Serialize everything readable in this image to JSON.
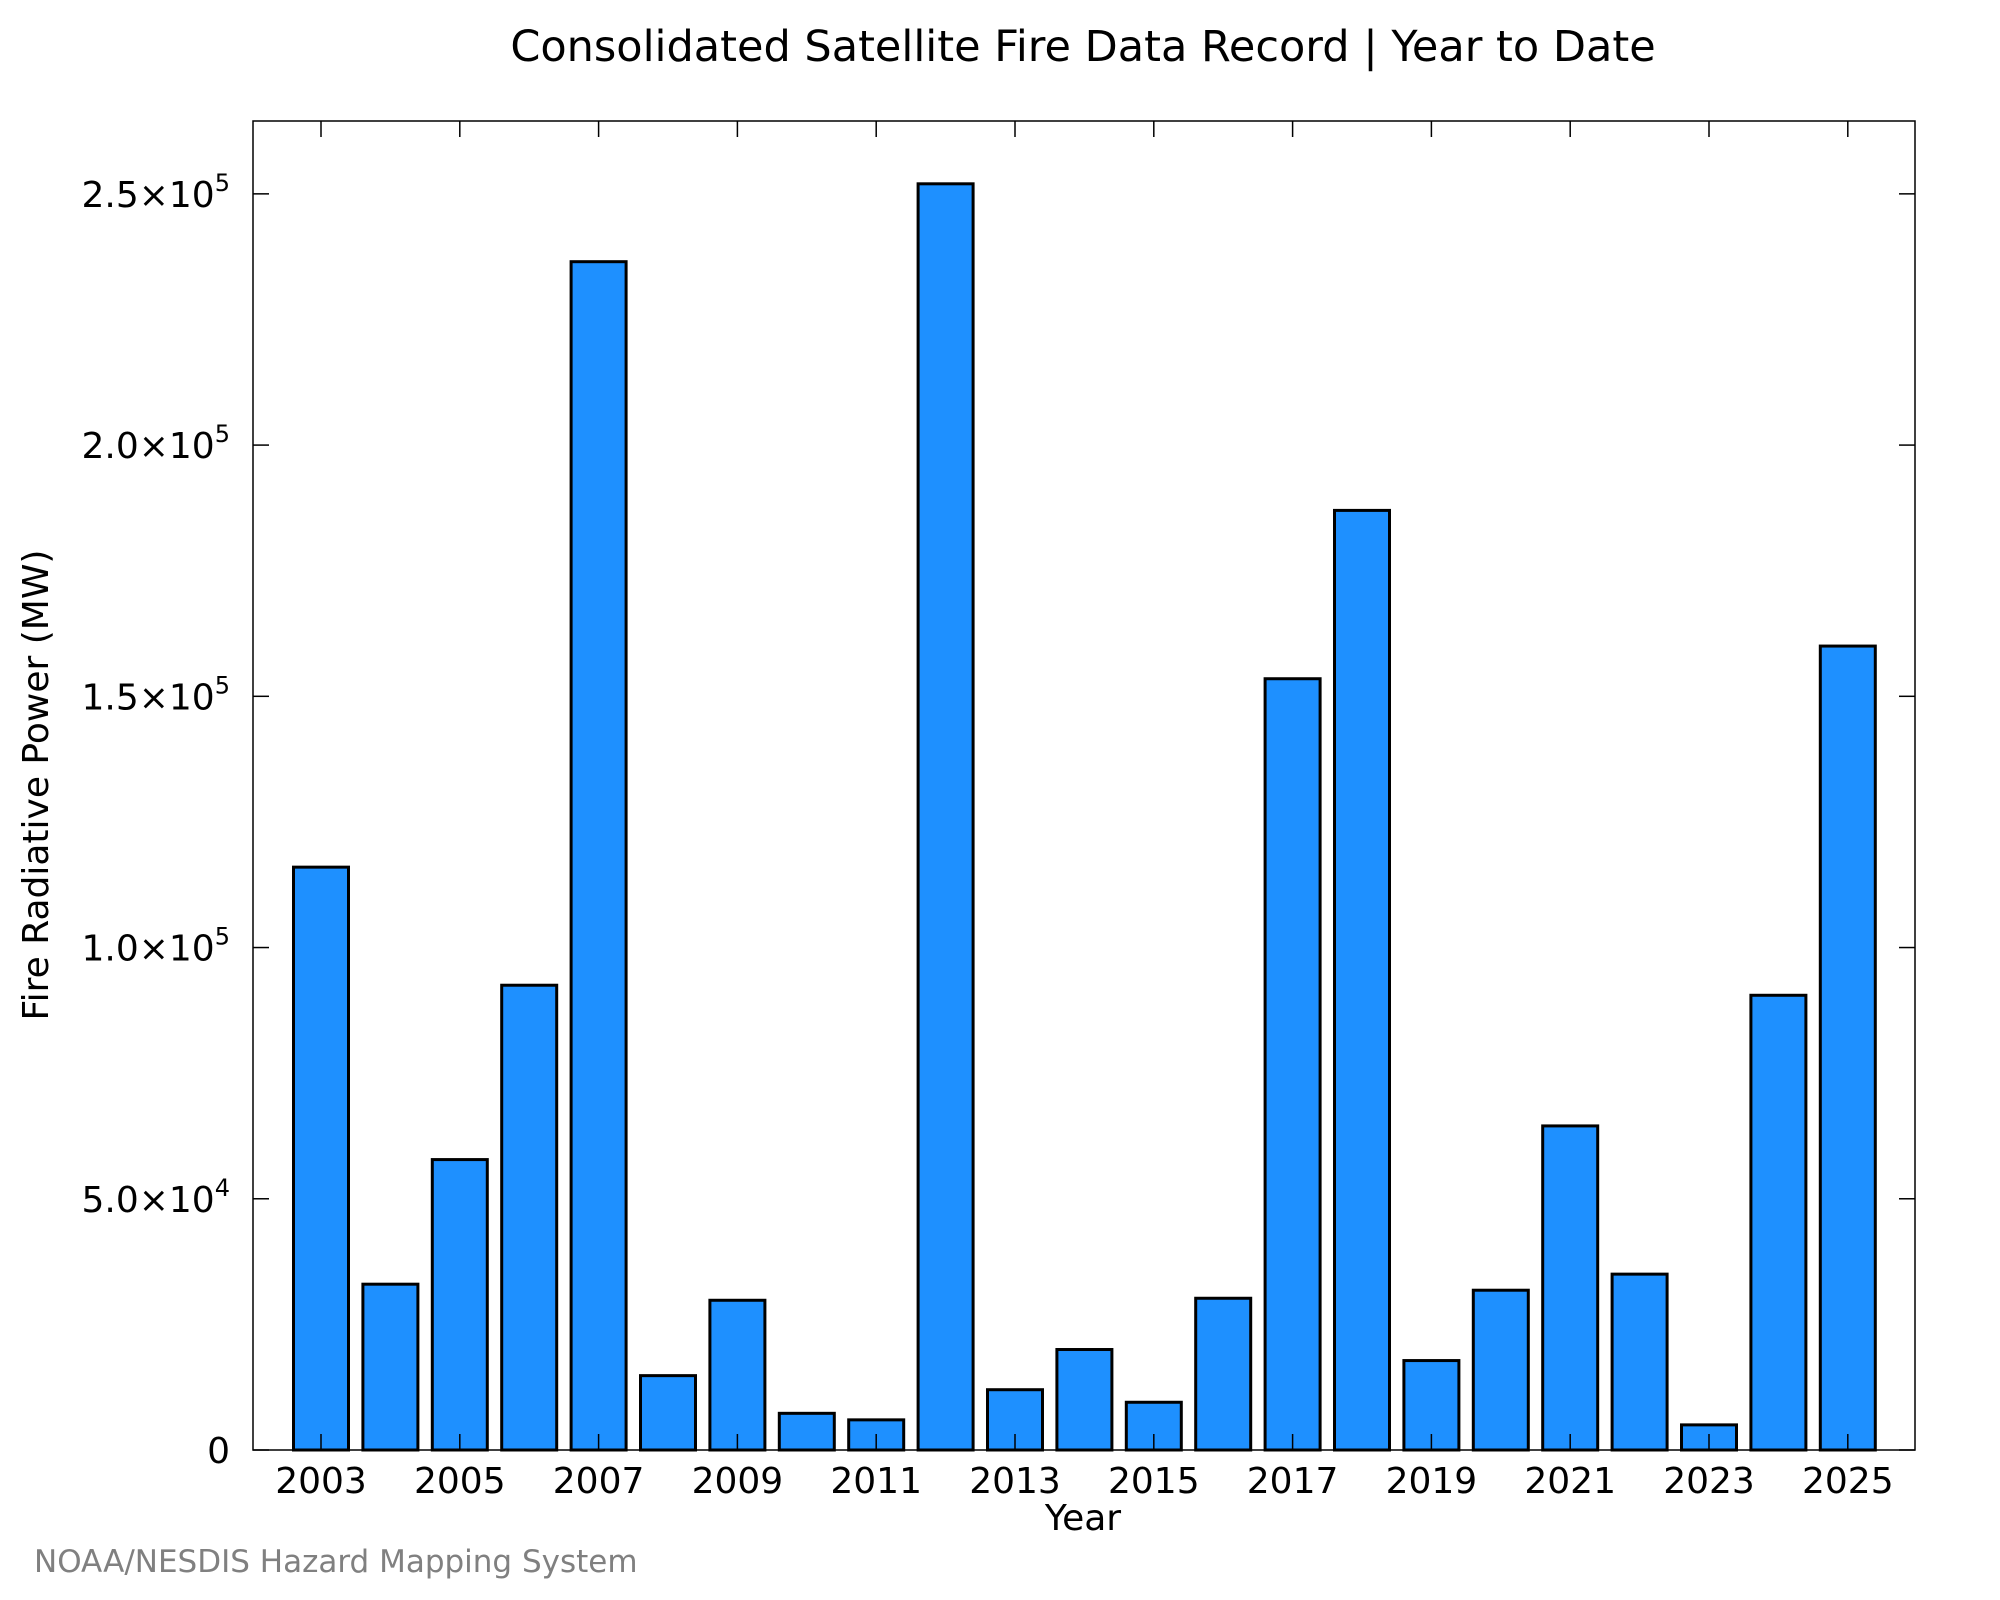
{
  "chart_data": {
    "type": "bar",
    "title": "Consolidated Satellite Fire Data Record | Year to Date",
    "xlabel": "Year",
    "ylabel": "Fire Radiative Power (MW)",
    "categories": [
      "2003",
      "2004",
      "2005",
      "2006",
      "2007",
      "2008",
      "2009",
      "2010",
      "2011",
      "2012",
      "2013",
      "2014",
      "2015",
      "2016",
      "2017",
      "2018",
      "2019",
      "2020",
      "2021",
      "2022",
      "2023",
      "2024",
      "2025"
    ],
    "values": [
      116000,
      33000,
      57800,
      92500,
      236500,
      14800,
      29800,
      7300,
      6000,
      252000,
      12000,
      20000,
      9500,
      30200,
      153500,
      187000,
      17800,
      31800,
      64500,
      35000,
      5000,
      90500,
      160000
    ],
    "x_tick_labels": [
      "2003",
      "2005",
      "2007",
      "2009",
      "2011",
      "2013",
      "2015",
      "2017",
      "2019",
      "2021",
      "2023",
      "2025"
    ],
    "y_ticks": [
      {
        "value": 0,
        "mantissa": "0",
        "exponent": ""
      },
      {
        "value": 50000,
        "mantissa": "5.0×10",
        "exponent": "4"
      },
      {
        "value": 100000,
        "mantissa": "1.0×10",
        "exponent": "5"
      },
      {
        "value": 150000,
        "mantissa": "1.5×10",
        "exponent": "5"
      },
      {
        "value": 200000,
        "mantissa": "2.0×10",
        "exponent": "5"
      },
      {
        "value": 250000,
        "mantissa": "2.5×10",
        "exponent": "5"
      }
    ],
    "ylim": [
      0,
      264500
    ],
    "grid": false,
    "colors": {
      "bar_fill": "#1E90FF",
      "bar_stroke": "#000000",
      "axis": "#000000",
      "credit": "#808080"
    }
  },
  "credit": "NOAA/NESDIS Hazard Mapping System"
}
